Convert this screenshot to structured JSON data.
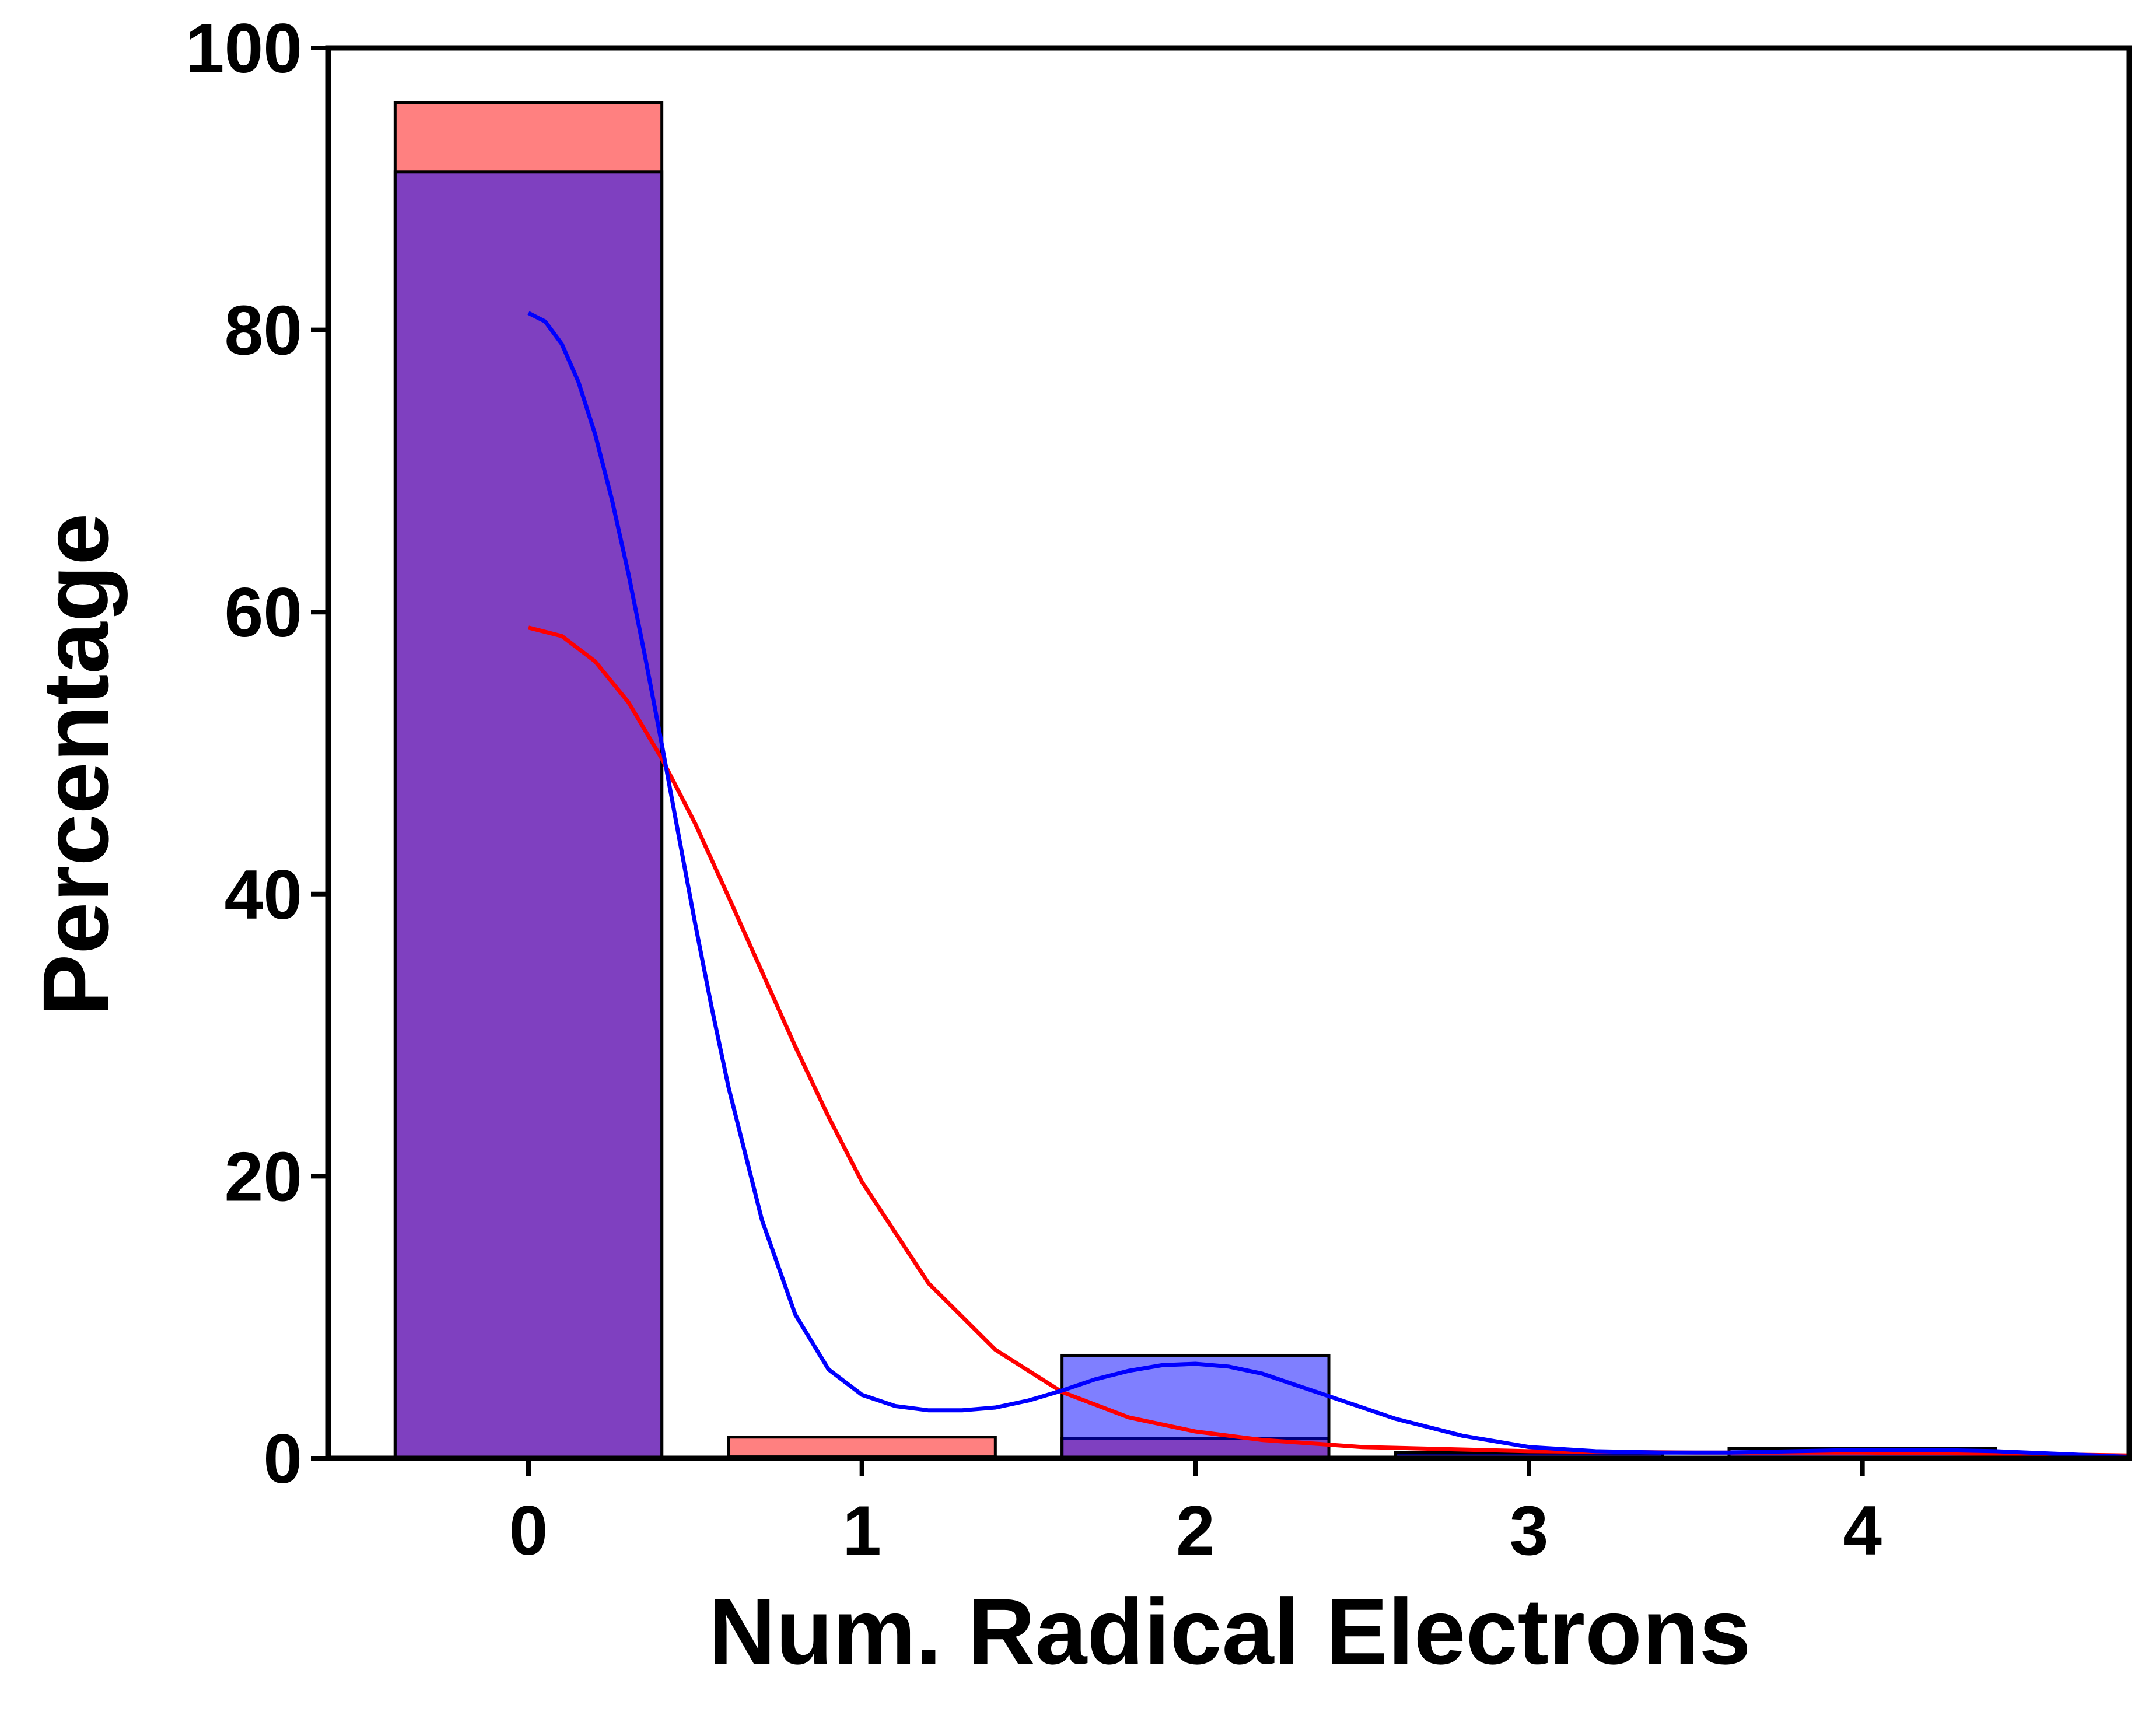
{
  "chart_data": {
    "type": "bar",
    "title": "",
    "xlabel": "Num. Radical Electrons",
    "ylabel": "Percentage",
    "xlim": [
      -0.6,
      4.8
    ],
    "ylim": [
      0,
      100
    ],
    "xticks": [
      0,
      1,
      2,
      3,
      4
    ],
    "yticks": [
      0,
      20,
      40,
      60,
      80,
      100
    ],
    "grid": false,
    "legend": "none",
    "bar_width": 0.8,
    "series": [
      {
        "color": "#ff0000",
        "bar_fill": "#ff8080",
        "values": [
          {
            "x": 0,
            "y": 96.1
          },
          {
            "x": 1,
            "y": 1.5
          },
          {
            "x": 2,
            "y": 1.4
          },
          {
            "x": 3,
            "y": 0.3
          },
          {
            "x": 4,
            "y": 0.4
          }
        ],
        "kde": [
          [
            0,
            58.9
          ],
          [
            0.1,
            58.3
          ],
          [
            0.2,
            56.5
          ],
          [
            0.3,
            53.6
          ],
          [
            0.4,
            49.6
          ],
          [
            0.5,
            45.0
          ],
          [
            0.6,
            39.8
          ],
          [
            0.7,
            34.5
          ],
          [
            0.8,
            29.2
          ],
          [
            0.9,
            24.2
          ],
          [
            1.0,
            19.6
          ],
          [
            1.2,
            12.4
          ],
          [
            1.4,
            7.7
          ],
          [
            1.6,
            4.7
          ],
          [
            1.8,
            2.9
          ],
          [
            2.0,
            1.9
          ],
          [
            2.2,
            1.3
          ],
          [
            2.5,
            0.8
          ],
          [
            3.0,
            0.5
          ],
          [
            3.5,
            0.4
          ],
          [
            4.0,
            0.4
          ],
          [
            4.5,
            0.3
          ],
          [
            4.8,
            0.2
          ]
        ]
      },
      {
        "color": "#0000ff",
        "bar_fill": "#8080ff",
        "values": [
          {
            "x": 0,
            "y": 91.2
          },
          {
            "x": 1,
            "y": 0.1
          },
          {
            "x": 2,
            "y": 7.3
          },
          {
            "x": 3,
            "y": 0.4
          },
          {
            "x": 4,
            "y": 0.7
          }
        ],
        "kde": [
          [
            0,
            81.2
          ],
          [
            0.05,
            80.6
          ],
          [
            0.1,
            79.0
          ],
          [
            0.15,
            76.3
          ],
          [
            0.2,
            72.6
          ],
          [
            0.25,
            68.0
          ],
          [
            0.3,
            62.7
          ],
          [
            0.35,
            56.8
          ],
          [
            0.4,
            50.6
          ],
          [
            0.45,
            44.2
          ],
          [
            0.5,
            37.9
          ],
          [
            0.55,
            31.9
          ],
          [
            0.6,
            26.3
          ],
          [
            0.7,
            16.9
          ],
          [
            0.8,
            10.2
          ],
          [
            0.9,
            6.3
          ],
          [
            1.0,
            4.5
          ],
          [
            1.1,
            3.7
          ],
          [
            1.2,
            3.4
          ],
          [
            1.3,
            3.4
          ],
          [
            1.4,
            3.6
          ],
          [
            1.5,
            4.1
          ],
          [
            1.6,
            4.8
          ],
          [
            1.7,
            5.6
          ],
          [
            1.8,
            6.2
          ],
          [
            1.9,
            6.6
          ],
          [
            2.0,
            6.7
          ],
          [
            2.1,
            6.5
          ],
          [
            2.2,
            6.0
          ],
          [
            2.3,
            5.2
          ],
          [
            2.4,
            4.4
          ],
          [
            2.6,
            2.8
          ],
          [
            2.8,
            1.6
          ],
          [
            3.0,
            0.8
          ],
          [
            3.2,
            0.5
          ],
          [
            3.4,
            0.4
          ],
          [
            3.6,
            0.4
          ],
          [
            3.8,
            0.5
          ],
          [
            4.0,
            0.6
          ],
          [
            4.2,
            0.6
          ],
          [
            4.4,
            0.5
          ],
          [
            4.6,
            0.3
          ],
          [
            4.8,
            0.1
          ]
        ]
      }
    ]
  }
}
